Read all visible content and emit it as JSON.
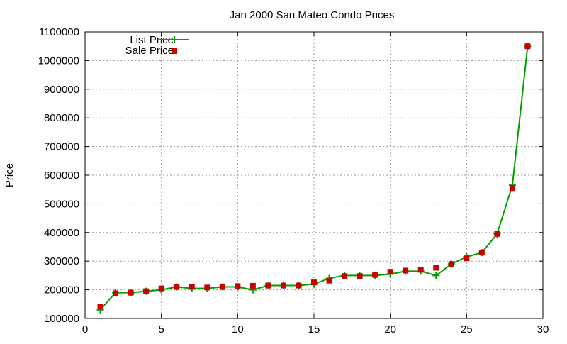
{
  "chart_data": {
    "type": "line",
    "title": "Jan 2000 San Mateo Condo Prices",
    "xlabel": "",
    "ylabel": "Price",
    "xlim": [
      0,
      30
    ],
    "ylim": [
      100000,
      1100000
    ],
    "x_ticks": [
      0,
      5,
      10,
      15,
      20,
      25,
      30
    ],
    "y_ticks": [
      100000,
      200000,
      300000,
      400000,
      500000,
      600000,
      700000,
      800000,
      900000,
      1000000,
      1100000
    ],
    "grid": true,
    "legend_position": "top-left",
    "series": [
      {
        "name": "List Price",
        "style": "line-with-plus-markers",
        "color": "#00a000",
        "x": [
          1,
          2,
          3,
          4,
          5,
          6,
          7,
          8,
          9,
          10,
          11,
          12,
          13,
          14,
          15,
          16,
          17,
          18,
          19,
          20,
          21,
          22,
          23,
          24,
          25,
          26,
          27,
          28,
          29
        ],
        "values": [
          130000,
          190000,
          190000,
          195000,
          200000,
          210000,
          205000,
          205000,
          210000,
          210000,
          200000,
          215000,
          215000,
          215000,
          220000,
          240000,
          250000,
          250000,
          250000,
          255000,
          265000,
          265000,
          250000,
          290000,
          315000,
          330000,
          395000,
          565000,
          1050000
        ]
      },
      {
        "name": "Sale Price",
        "style": "square-markers",
        "color": "#cc0000",
        "x": [
          1,
          2,
          3,
          4,
          5,
          6,
          7,
          8,
          9,
          10,
          11,
          12,
          13,
          14,
          15,
          16,
          17,
          18,
          19,
          20,
          21,
          22,
          23,
          24,
          25,
          26,
          27,
          28,
          29
        ],
        "values": [
          142000,
          188000,
          190000,
          195000,
          205000,
          210000,
          210000,
          208000,
          210000,
          213000,
          214000,
          215000,
          215000,
          215000,
          226000,
          232000,
          248000,
          248000,
          252000,
          263000,
          267000,
          270000,
          277000,
          290000,
          310000,
          330000,
          395000,
          555000,
          1050000
        ]
      }
    ]
  }
}
